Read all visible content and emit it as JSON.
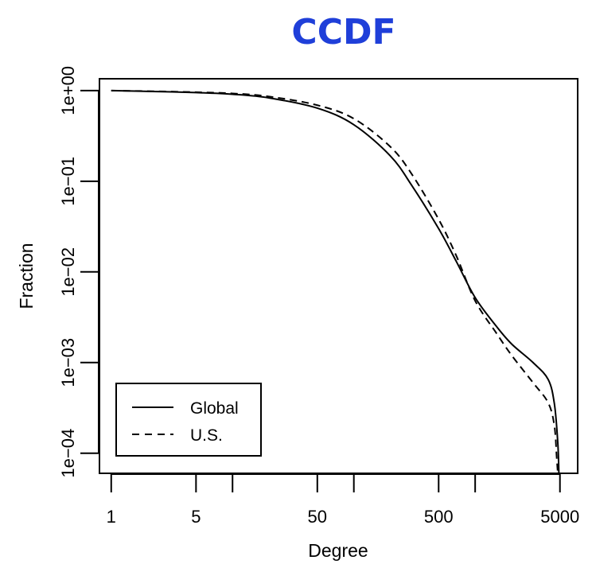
{
  "chart_data": {
    "type": "line",
    "title": "CCDF",
    "xlabel": "Degree",
    "ylabel": "Fraction",
    "x_scale": "log",
    "y_scale": "log",
    "xlim": [
      0.8,
      7000
    ],
    "ylim": [
      6e-05,
      1.35
    ],
    "x_ticks": [
      {
        "value": 1,
        "label": "1"
      },
      {
        "value": 5,
        "label": "5"
      },
      {
        "value": 10,
        "label": ""
      },
      {
        "value": 50,
        "label": "50"
      },
      {
        "value": 100,
        "label": ""
      },
      {
        "value": 500,
        "label": "500"
      },
      {
        "value": 1000,
        "label": ""
      },
      {
        "value": 5000,
        "label": "5000"
      }
    ],
    "y_ticks": [
      {
        "value": 1,
        "label": "1e+00"
      },
      {
        "value": 0.1,
        "label": "1e−01"
      },
      {
        "value": 0.01,
        "label": "1e−02"
      },
      {
        "value": 0.001,
        "label": "1e−03"
      },
      {
        "value": 0.0001,
        "label": "1e−04"
      }
    ],
    "grid": false,
    "legend_position": "bottom-left",
    "series": [
      {
        "name": "Global",
        "style": "solid",
        "color": "#000000",
        "points": [
          [
            1,
            1.0
          ],
          [
            2,
            0.98
          ],
          [
            5,
            0.95
          ],
          [
            10,
            0.91
          ],
          [
            20,
            0.83
          ],
          [
            50,
            0.64
          ],
          [
            100,
            0.42
          ],
          [
            200,
            0.19
          ],
          [
            300,
            0.09
          ],
          [
            500,
            0.03
          ],
          [
            700,
            0.013
          ],
          [
            1000,
            0.0052
          ],
          [
            1500,
            0.0025
          ],
          [
            2000,
            0.0016
          ],
          [
            3000,
            0.001
          ],
          [
            4000,
            0.00065
          ],
          [
            4500,
            0.00035
          ],
          [
            4800,
            0.00013
          ],
          [
            4900,
            6e-05
          ]
        ]
      },
      {
        "name": "U.S.",
        "style": "dashed",
        "color": "#000000",
        "points": [
          [
            1,
            1.0
          ],
          [
            2,
            0.985
          ],
          [
            5,
            0.96
          ],
          [
            10,
            0.93
          ],
          [
            20,
            0.86
          ],
          [
            50,
            0.69
          ],
          [
            100,
            0.49
          ],
          [
            200,
            0.24
          ],
          [
            300,
            0.12
          ],
          [
            500,
            0.038
          ],
          [
            700,
            0.015
          ],
          [
            1000,
            0.0048
          ],
          [
            1500,
            0.0021
          ],
          [
            2000,
            0.0012
          ],
          [
            3000,
            0.0006
          ],
          [
            4000,
            0.00036
          ],
          [
            4500,
            0.0002
          ],
          [
            4700,
            9e-05
          ],
          [
            4800,
            6e-05
          ]
        ]
      }
    ]
  }
}
